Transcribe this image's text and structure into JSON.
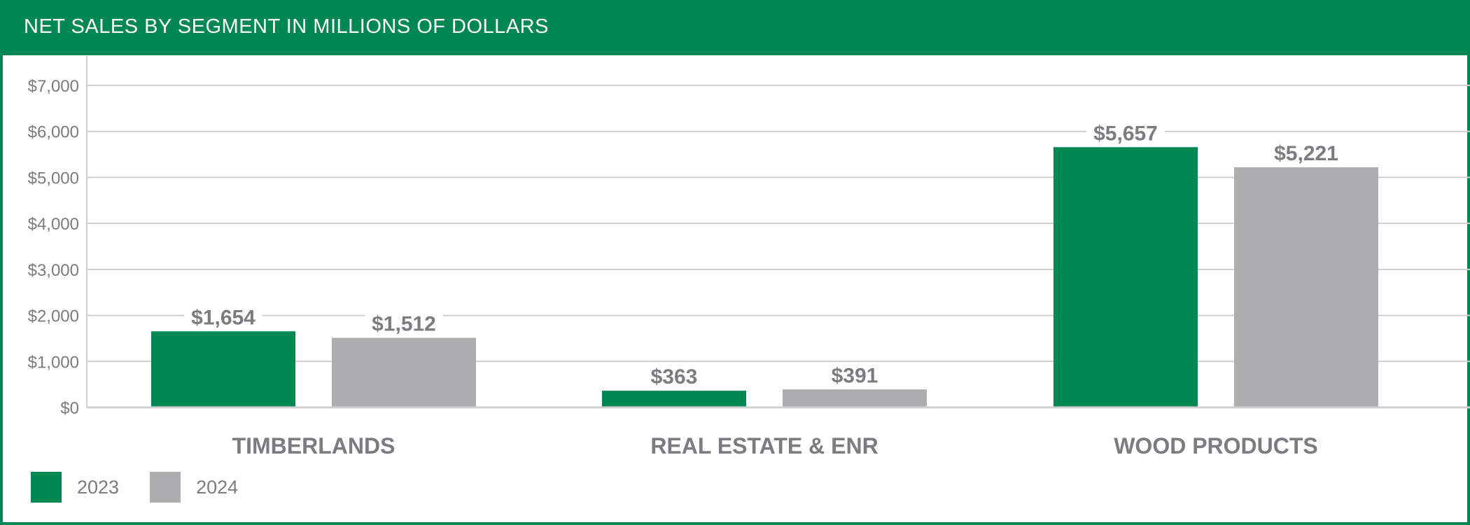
{
  "title": "NET SALES BY SEGMENT IN MILLIONS OF DOLLARS",
  "colors": {
    "brand_green": "#008752",
    "gray_bar": "#aeaeb0",
    "text_gray": "#7b7b80",
    "grid": "#cfcfd2",
    "white": "#ffffff"
  },
  "chart_data": {
    "type": "bar",
    "title": "NET SALES BY SEGMENT IN MILLIONS OF DOLLARS",
    "categories": [
      "TIMBERLANDS",
      "REAL ESTATE & ENR",
      "WOOD PRODUCTS"
    ],
    "series": [
      {
        "name": "2023",
        "color": "#008752",
        "values": [
          1654,
          363,
          5657
        ],
        "labels": [
          "$1,654",
          "$363",
          "$5,657"
        ]
      },
      {
        "name": "2024",
        "color": "#aeaeb0",
        "values": [
          1512,
          391,
          5221
        ],
        "labels": [
          "$1,512",
          "$391",
          "$5,221"
        ]
      }
    ],
    "ylim": [
      0,
      7000
    ],
    "yticks": [
      0,
      1000,
      2000,
      3000,
      4000,
      5000,
      6000,
      7000
    ],
    "ytick_labels": [
      "$0",
      "$1,000",
      "$2,000",
      "$3,000",
      "$4,000",
      "$5,000",
      "$6,000",
      "$7,000"
    ],
    "xlabel": "",
    "ylabel": "",
    "grid": true,
    "legend": {
      "position": "bottom-left",
      "entries": [
        "2023",
        "2024"
      ]
    }
  }
}
